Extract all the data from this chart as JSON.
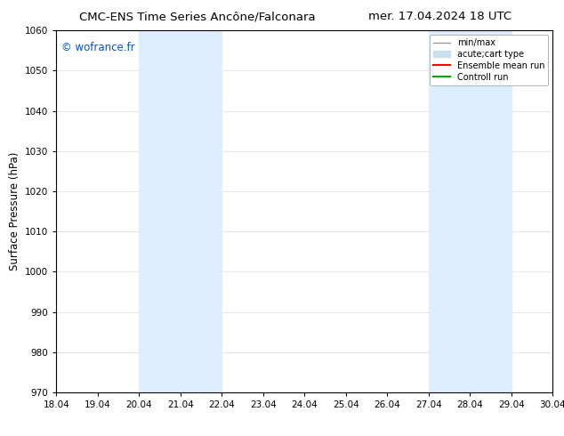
{
  "title_left": "CMC-ENS Time Series Ancône/Falconara",
  "title_right": "mer. 17.04.2024 18 UTC",
  "ylabel": "Surface Pressure (hPa)",
  "ylim": [
    970,
    1060
  ],
  "yticks": [
    970,
    980,
    990,
    1000,
    1010,
    1020,
    1030,
    1040,
    1050,
    1060
  ],
  "xlim": [
    18.04,
    30.04
  ],
  "xticks": [
    18.04,
    19.04,
    20.04,
    21.04,
    22.04,
    23.04,
    24.04,
    25.04,
    26.04,
    27.04,
    28.04,
    29.04,
    30.04
  ],
  "xtick_labels": [
    "18.04",
    "19.04",
    "20.04",
    "21.04",
    "22.04",
    "23.04",
    "24.04",
    "25.04",
    "26.04",
    "27.04",
    "28.04",
    "29.04",
    "30.04"
  ],
  "watermark": "© wofrance.fr",
  "watermark_color": "#0055cc",
  "background_color": "#ffffff",
  "plot_bg_color": "#ffffff",
  "shaded_regions": [
    {
      "xmin": 20.04,
      "xmax": 22.04,
      "color": "#ddeeff"
    },
    {
      "xmin": 27.04,
      "xmax": 29.04,
      "color": "#ddeeff"
    }
  ],
  "legend_entries": [
    {
      "label": "min/max",
      "color": "#999999",
      "lw": 1.0,
      "style": "solid",
      "type": "line"
    },
    {
      "label": "acute;cart type",
      "color": "#c8dff0",
      "lw": 8,
      "style": "solid",
      "type": "patch"
    },
    {
      "label": "Ensemble mean run",
      "color": "#ff0000",
      "lw": 1.5,
      "style": "solid",
      "type": "line"
    },
    {
      "label": "Controll run",
      "color": "#00aa00",
      "lw": 1.5,
      "style": "solid",
      "type": "line"
    }
  ],
  "grid_color": "#cccccc",
  "grid_alpha": 0.7,
  "title_fontsize": 9.5,
  "label_fontsize": 8.5,
  "tick_fontsize": 7.5,
  "watermark_fontsize": 8.5,
  "legend_fontsize": 7
}
